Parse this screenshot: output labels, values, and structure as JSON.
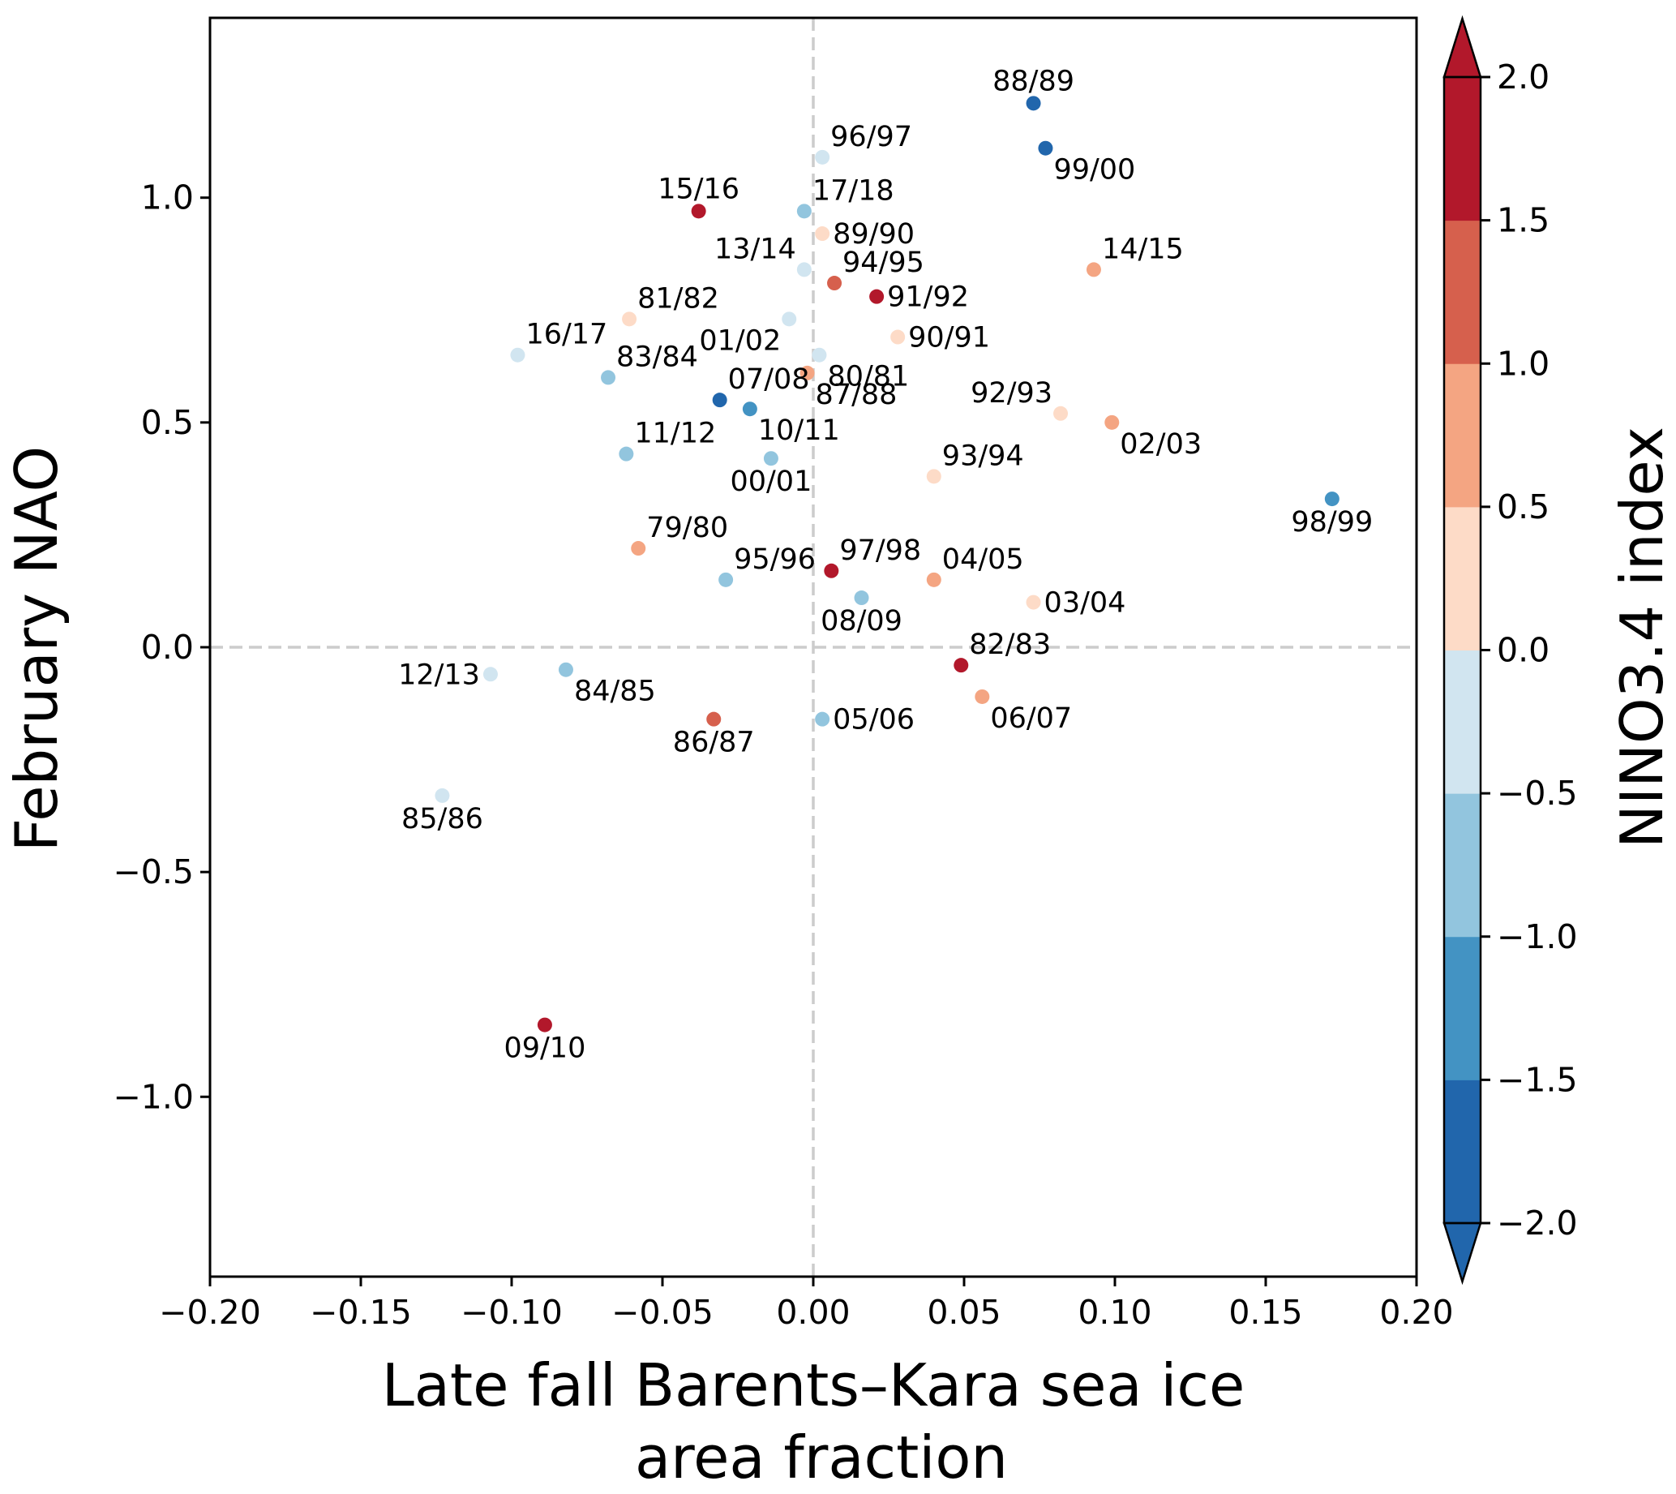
{
  "chart_data": {
    "type": "scatter",
    "xlabel_lines": [
      "Late fall Barents–Kara sea ice",
      "area fraction"
    ],
    "ylabel": "February NAO",
    "xlim": [
      -0.2,
      0.2
    ],
    "ylim": [
      -1.4,
      1.4
    ],
    "x_ticks": [
      "−0.20",
      "−0.15",
      "−0.10",
      "−0.05",
      "0.00",
      "0.05",
      "0.10",
      "0.15",
      "0.20"
    ],
    "y_ticks": [
      "−1.0",
      "−0.5",
      "0.0",
      "0.5",
      "1.0"
    ],
    "grid": false,
    "reference_lines": {
      "x": 0,
      "y": 0,
      "style": "dashed",
      "color": "#cccccc"
    },
    "colorbar": {
      "title": "NINO3.4 index",
      "range": [
        -2.0,
        2.0
      ],
      "ticks": [
        "2.0",
        "1.5",
        "1.0",
        "0.5",
        "0.0",
        "−0.5",
        "−1.0",
        "−1.5",
        "−2.0"
      ],
      "extend": "both",
      "colors_bottom_to_top": [
        "#2166ac",
        "#4393c3",
        "#92c5de",
        "#d1e5f0",
        "#fddbc7",
        "#f4a582",
        "#d6604d",
        "#b2182b"
      ]
    },
    "points": [
      {
        "label": "88/89",
        "x": 0.073,
        "y": 1.21,
        "nino": -1.7,
        "lpos": "above"
      },
      {
        "label": "99/00",
        "x": 0.077,
        "y": 1.11,
        "nino": -1.6,
        "lpos": "belowright"
      },
      {
        "label": "96/97",
        "x": 0.003,
        "y": 1.09,
        "nino": -0.4,
        "lpos": "aboveright"
      },
      {
        "label": "15/16",
        "x": -0.038,
        "y": 0.97,
        "nino": 2.2,
        "lpos": "above"
      },
      {
        "label": "17/18",
        "x": -0.003,
        "y": 0.97,
        "nino": -0.8,
        "lpos": "aboveright"
      },
      {
        "label": "89/90",
        "x": 0.003,
        "y": 0.92,
        "nino": 0.2,
        "lpos": "right"
      },
      {
        "label": "13/14",
        "x": -0.003,
        "y": 0.84,
        "nino": -0.3,
        "lpos": "aboveleft"
      },
      {
        "label": "94/95",
        "x": 0.007,
        "y": 0.81,
        "nino": 1.2,
        "lpos": "aboveright"
      },
      {
        "label": "14/15",
        "x": 0.093,
        "y": 0.84,
        "nino": 0.7,
        "lpos": "aboveright"
      },
      {
        "label": "91/92",
        "x": 0.021,
        "y": 0.78,
        "nino": 1.7,
        "lpos": "right"
      },
      {
        "label": "81/82",
        "x": -0.061,
        "y": 0.73,
        "nino": 0.1,
        "lpos": "aboveright"
      },
      {
        "label": "01/02",
        "x": -0.008,
        "y": 0.73,
        "nino": -0.3,
        "lpos": "belowleft"
      },
      {
        "label": "90/91",
        "x": 0.028,
        "y": 0.69,
        "nino": 0.3,
        "lpos": "right"
      },
      {
        "label": "16/17",
        "x": -0.098,
        "y": 0.65,
        "nino": -0.3,
        "lpos": "aboveright"
      },
      {
        "label": "80/81",
        "x": 0.002,
        "y": 0.65,
        "nino": -0.2,
        "lpos": "belowright"
      },
      {
        "label": "83/84",
        "x": -0.068,
        "y": 0.6,
        "nino": -0.8,
        "lpos": "aboveright"
      },
      {
        "label": "87/88",
        "x": -0.002,
        "y": 0.61,
        "nino": 0.9,
        "lpos": "belowright"
      },
      {
        "label": "07/08",
        "x": -0.031,
        "y": 0.55,
        "nino": -1.6,
        "lpos": "aboveright"
      },
      {
        "label": "10/11",
        "x": -0.021,
        "y": 0.53,
        "nino": -1.4,
        "lpos": "belowright"
      },
      {
        "label": "92/93",
        "x": 0.082,
        "y": 0.52,
        "nino": 0.2,
        "lpos": "aboveleft"
      },
      {
        "label": "02/03",
        "x": 0.099,
        "y": 0.5,
        "nino": 0.9,
        "lpos": "belowright"
      },
      {
        "label": "11/12",
        "x": -0.062,
        "y": 0.43,
        "nino": -0.8,
        "lpos": "aboveright"
      },
      {
        "label": "00/01",
        "x": -0.014,
        "y": 0.42,
        "nino": -0.7,
        "lpos": "below"
      },
      {
        "label": "93/94",
        "x": 0.04,
        "y": 0.38,
        "nino": 0.1,
        "lpos": "aboveright"
      },
      {
        "label": "98/99",
        "x": 0.172,
        "y": 0.33,
        "nino": -1.4,
        "lpos": "below"
      },
      {
        "label": "79/80",
        "x": -0.058,
        "y": 0.22,
        "nino": 0.6,
        "lpos": "aboveright"
      },
      {
        "label": "95/96",
        "x": -0.029,
        "y": 0.15,
        "nino": -1.0,
        "lpos": "aboveright"
      },
      {
        "label": "97/98",
        "x": 0.006,
        "y": 0.17,
        "nino": 2.0,
        "lpos": "aboveright"
      },
      {
        "label": "04/05",
        "x": 0.04,
        "y": 0.15,
        "nino": 0.7,
        "lpos": "aboveright"
      },
      {
        "label": "08/09",
        "x": 0.016,
        "y": 0.11,
        "nino": -0.8,
        "lpos": "below"
      },
      {
        "label": "03/04",
        "x": 0.073,
        "y": 0.1,
        "nino": 0.2,
        "lpos": "right"
      },
      {
        "label": "82/83",
        "x": 0.049,
        "y": -0.04,
        "nino": 2.2,
        "lpos": "aboveright"
      },
      {
        "label": "12/13",
        "x": -0.107,
        "y": -0.06,
        "nino": -0.3,
        "lpos": "left"
      },
      {
        "label": "84/85",
        "x": -0.082,
        "y": -0.05,
        "nino": -0.8,
        "lpos": "belowright"
      },
      {
        "label": "06/07",
        "x": 0.056,
        "y": -0.11,
        "nino": 0.7,
        "lpos": "belowright"
      },
      {
        "label": "86/87",
        "x": -0.033,
        "y": -0.16,
        "nino": 1.2,
        "lpos": "below"
      },
      {
        "label": "05/06",
        "x": 0.003,
        "y": -0.16,
        "nino": -0.8,
        "lpos": "right"
      },
      {
        "label": "85/86",
        "x": -0.123,
        "y": -0.33,
        "nino": -0.3,
        "lpos": "below"
      },
      {
        "label": "09/10",
        "x": -0.089,
        "y": -0.84,
        "nino": 1.6,
        "lpos": "below"
      }
    ]
  }
}
